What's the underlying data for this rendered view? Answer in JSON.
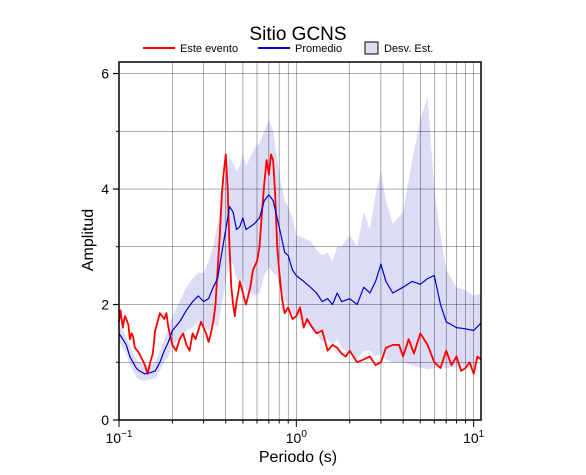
{
  "chart_data": {
    "type": "line",
    "title": "Sitio GCNS",
    "xlabel": "Periodo (s)",
    "ylabel": "Amplitud",
    "x_scale": "log",
    "xlim": [
      0.1,
      11
    ],
    "ylim": [
      0,
      6.2
    ],
    "x_ticks": [
      {
        "value": 0.1,
        "base": "10",
        "exp": "−1"
      },
      {
        "value": 1,
        "base": "10",
        "exp": "0"
      },
      {
        "value": 10,
        "base": "10",
        "exp": "1"
      }
    ],
    "y_ticks": [
      0,
      2,
      4,
      6
    ],
    "grid": true,
    "legend_position": "top",
    "colors": {
      "este": "#ff0000",
      "promedio": "#0000cc",
      "band_fill": "#dcdcf6",
      "grid": "#000000"
    },
    "series": [
      {
        "name": "Este evento",
        "x": [
          0.1,
          0.102,
          0.105,
          0.108,
          0.11,
          0.113,
          0.115,
          0.118,
          0.12,
          0.123,
          0.127,
          0.13,
          0.135,
          0.14,
          0.145,
          0.15,
          0.155,
          0.16,
          0.165,
          0.17,
          0.175,
          0.18,
          0.185,
          0.19,
          0.195,
          0.2,
          0.21,
          0.22,
          0.23,
          0.24,
          0.25,
          0.26,
          0.27,
          0.28,
          0.29,
          0.3,
          0.31,
          0.32,
          0.33,
          0.34,
          0.35,
          0.36,
          0.37,
          0.38,
          0.39,
          0.4,
          0.41,
          0.42,
          0.43,
          0.44,
          0.45,
          0.46,
          0.47,
          0.48,
          0.5,
          0.52,
          0.55,
          0.57,
          0.6,
          0.62,
          0.64,
          0.66,
          0.68,
          0.7,
          0.72,
          0.74,
          0.76,
          0.78,
          0.8,
          0.83,
          0.86,
          0.9,
          0.95,
          1.0,
          1.05,
          1.1,
          1.15,
          1.2,
          1.3,
          1.4,
          1.5,
          1.6,
          1.7,
          1.8,
          1.9,
          2.0,
          2.2,
          2.4,
          2.6,
          2.8,
          3.0,
          3.2,
          3.5,
          3.8,
          4.0,
          4.3,
          4.6,
          5.0,
          5.5,
          6.0,
          6.5,
          7.0,
          7.5,
          8.0,
          8.5,
          9.0,
          9.5,
          10.0,
          10.5,
          11.0
        ],
        "y": [
          1.7,
          1.9,
          1.6,
          1.8,
          1.75,
          1.65,
          1.4,
          1.5,
          1.45,
          1.25,
          1.2,
          1.15,
          1.05,
          0.95,
          0.8,
          1.0,
          1.15,
          1.55,
          1.7,
          1.85,
          1.8,
          1.75,
          1.85,
          1.6,
          1.45,
          1.3,
          1.2,
          1.4,
          1.5,
          1.3,
          1.2,
          1.5,
          1.4,
          1.55,
          1.7,
          1.6,
          1.5,
          1.35,
          1.5,
          1.7,
          2.0,
          2.6,
          3.2,
          3.9,
          4.3,
          4.6,
          4.0,
          3.0,
          2.3,
          2.0,
          1.8,
          2.05,
          2.2,
          2.4,
          2.2,
          2.0,
          2.3,
          2.6,
          2.75,
          3.0,
          3.6,
          4.1,
          4.5,
          4.25,
          4.6,
          4.5,
          3.9,
          3.0,
          2.6,
          2.1,
          1.85,
          1.95,
          1.75,
          1.8,
          1.95,
          1.6,
          1.75,
          1.65,
          1.5,
          1.55,
          1.2,
          1.3,
          1.25,
          1.15,
          1.1,
          1.2,
          1.0,
          1.05,
          1.1,
          0.95,
          1.0,
          1.25,
          1.3,
          1.3,
          1.1,
          1.4,
          1.15,
          1.5,
          1.3,
          1.0,
          0.9,
          1.2,
          0.95,
          1.1,
          0.85,
          0.9,
          1.0,
          0.8,
          1.1,
          1.05
        ]
      },
      {
        "name": "Promedio",
        "x": [
          0.1,
          0.105,
          0.11,
          0.115,
          0.12,
          0.125,
          0.13,
          0.14,
          0.15,
          0.16,
          0.17,
          0.18,
          0.19,
          0.2,
          0.22,
          0.24,
          0.26,
          0.28,
          0.3,
          0.32,
          0.34,
          0.36,
          0.38,
          0.4,
          0.42,
          0.44,
          0.46,
          0.48,
          0.5,
          0.52,
          0.55,
          0.58,
          0.62,
          0.66,
          0.7,
          0.74,
          0.78,
          0.82,
          0.86,
          0.9,
          0.95,
          1.0,
          1.1,
          1.2,
          1.3,
          1.4,
          1.5,
          1.6,
          1.7,
          1.8,
          2.0,
          2.2,
          2.4,
          2.6,
          2.8,
          3.0,
          3.2,
          3.5,
          4.0,
          4.5,
          5.0,
          5.5,
          6.0,
          6.5,
          7.0,
          8.0,
          9.0,
          10.0,
          11.0
        ],
        "y": [
          1.5,
          1.4,
          1.3,
          1.1,
          1.0,
          0.9,
          0.85,
          0.8,
          0.82,
          0.85,
          1.0,
          1.2,
          1.35,
          1.55,
          1.7,
          1.9,
          2.05,
          2.15,
          2.05,
          2.1,
          2.3,
          2.45,
          2.9,
          3.3,
          3.7,
          3.6,
          3.3,
          3.35,
          3.5,
          3.3,
          3.35,
          3.4,
          3.5,
          3.8,
          3.9,
          3.8,
          3.5,
          3.2,
          2.9,
          2.85,
          2.6,
          2.5,
          2.4,
          2.3,
          2.2,
          2.05,
          2.1,
          2.0,
          2.2,
          2.05,
          2.1,
          2.0,
          2.3,
          2.2,
          2.4,
          2.7,
          2.4,
          2.2,
          2.3,
          2.4,
          2.35,
          2.45,
          2.5,
          2.0,
          1.7,
          1.6,
          1.58,
          1.55,
          1.68
        ]
      }
    ],
    "band": {
      "name": "Desv. Est.",
      "x": [
        0.1,
        0.105,
        0.11,
        0.115,
        0.12,
        0.125,
        0.13,
        0.14,
        0.15,
        0.16,
        0.17,
        0.18,
        0.19,
        0.2,
        0.22,
        0.24,
        0.26,
        0.28,
        0.3,
        0.32,
        0.34,
        0.36,
        0.38,
        0.4,
        0.42,
        0.44,
        0.46,
        0.48,
        0.5,
        0.52,
        0.55,
        0.58,
        0.62,
        0.66,
        0.7,
        0.74,
        0.78,
        0.82,
        0.86,
        0.9,
        0.95,
        1.0,
        1.1,
        1.2,
        1.3,
        1.4,
        1.5,
        1.6,
        1.7,
        1.8,
        2.0,
        2.2,
        2.4,
        2.6,
        2.8,
        3.0,
        3.2,
        3.5,
        4.0,
        4.5,
        5.0,
        5.5,
        6.0,
        6.5,
        7.0,
        8.0,
        9.0,
        10.0,
        11.0
      ],
      "upper": [
        1.65,
        1.55,
        1.45,
        1.3,
        1.15,
        1.05,
        1.0,
        0.95,
        0.95,
        1.0,
        1.2,
        1.4,
        1.6,
        1.8,
        2.05,
        2.3,
        2.45,
        2.55,
        2.55,
        2.75,
        3.0,
        3.4,
        3.8,
        4.3,
        4.55,
        4.45,
        4.3,
        4.4,
        4.6,
        4.4,
        4.55,
        4.7,
        4.8,
        5.0,
        5.2,
        5.0,
        4.5,
        4.1,
        3.8,
        3.7,
        3.5,
        3.2,
        3.15,
        3.1,
        2.95,
        2.85,
        2.9,
        2.75,
        3.0,
        3.0,
        3.2,
        3.0,
        3.6,
        3.3,
        3.9,
        4.3,
        3.8,
        3.4,
        3.6,
        4.5,
        5.2,
        5.6,
        4.0,
        3.2,
        2.6,
        2.3,
        2.25,
        2.15,
        2.2
      ],
      "lower": [
        1.35,
        1.25,
        1.15,
        0.95,
        0.85,
        0.75,
        0.7,
        0.68,
        0.7,
        0.72,
        0.85,
        1.0,
        1.1,
        1.3,
        1.4,
        1.55,
        1.6,
        1.7,
        1.6,
        1.55,
        1.7,
        1.6,
        2.0,
        2.4,
        2.8,
        2.7,
        2.45,
        2.4,
        2.45,
        2.25,
        2.2,
        2.15,
        2.2,
        2.5,
        2.65,
        2.55,
        2.5,
        2.2,
        2.05,
        2.0,
        1.85,
        1.8,
        1.7,
        1.6,
        1.5,
        1.35,
        1.4,
        1.3,
        1.4,
        1.25,
        1.15,
        1.05,
        1.2,
        1.2,
        1.1,
        1.15,
        1.05,
        1.0,
        1.0,
        0.95,
        0.9,
        0.88,
        0.9,
        0.92,
        0.9,
        0.92,
        0.9,
        0.92,
        1.15
      ]
    }
  }
}
